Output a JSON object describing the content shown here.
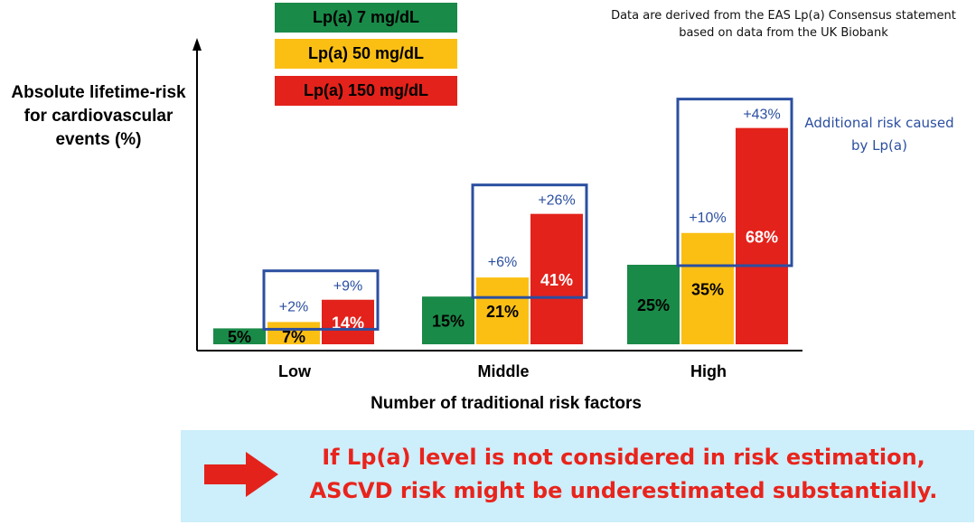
{
  "chart_data": {
    "type": "bar",
    "xlabel": "Number of traditional risk factors",
    "ylabel": "Absolute lifetime-risk for cardiovascular events  (%)",
    "categories": [
      "Low",
      "Middle",
      "High"
    ],
    "series": [
      {
        "name": "Lp(a) 7 mg/dL",
        "color": "#1a8a48",
        "values": [
          5,
          15,
          25
        ],
        "labels": [
          "5%",
          "15%",
          "25%"
        ]
      },
      {
        "name": "Lp(a) 50 mg/dL",
        "color": "#fbbf14",
        "values": [
          7,
          21,
          35
        ],
        "labels": [
          "7%",
          "21%",
          "35%"
        ]
      },
      {
        "name": "Lp(a) 150 mg/dL",
        "color": "#e3221b",
        "values": [
          14,
          41,
          68
        ],
        "labels": [
          "14%",
          "41%",
          "68%"
        ]
      }
    ],
    "additional_risk": {
      "lp50": [
        "+2%",
        "+6%",
        "+10%"
      ],
      "lp150": [
        "+9%",
        "+26%",
        "+43%"
      ]
    },
    "legend_position": "top",
    "grid": false
  },
  "note": "Data are derived from the EAS Lp(a) Consensus statement based on data from the UK Biobank",
  "annotation": "Additional risk caused by Lp(a)",
  "banner": {
    "line1": "If Lp(a) level is not considered in risk estimation,",
    "line2": "ASCVD risk might be underestimated substantially.",
    "arrow_icon": "right-arrow-icon"
  }
}
